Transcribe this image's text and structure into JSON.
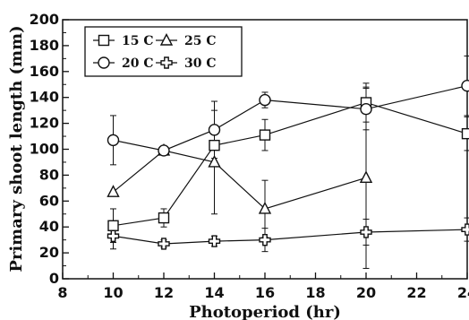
{
  "chart_data": {
    "type": "line",
    "xlabel": "Photoperiod (hr)",
    "ylabel": "Primary shoot length (mm)",
    "xlim": [
      8,
      24
    ],
    "ylim": [
      0,
      200
    ],
    "xticks": [
      "8",
      "10",
      "12",
      "14",
      "16",
      "18",
      "20",
      "22",
      "24"
    ],
    "yticks": [
      "0",
      "20",
      "40",
      "60",
      "80",
      "100",
      "120",
      "140",
      "160",
      "180",
      "200"
    ],
    "grid": false,
    "legend_position": "top-left",
    "x": [
      10,
      12,
      14,
      16,
      20,
      24
    ],
    "series": [
      {
        "name": "15 C",
        "marker": "square",
        "values": [
          41,
          47,
          103,
          111,
          136,
          112
        ],
        "error": [
          13,
          7,
          14,
          12,
          15,
          13
        ]
      },
      {
        "name": "25 C",
        "marker": "triangle",
        "values": [
          67,
          99,
          90,
          54,
          78,
          null
        ],
        "error": [
          0,
          2,
          40,
          22,
          70,
          null
        ]
      },
      {
        "name": "20 C",
        "marker": "circle",
        "values": [
          107,
          99,
          115,
          138,
          131,
          149
        ],
        "error": [
          19,
          2,
          22,
          6,
          16,
          23
        ]
      },
      {
        "name": "30 C",
        "marker": "cross",
        "values": [
          33,
          27,
          29,
          30,
          36,
          38
        ],
        "error": [
          10,
          3,
          4,
          9,
          10,
          9
        ]
      }
    ]
  }
}
